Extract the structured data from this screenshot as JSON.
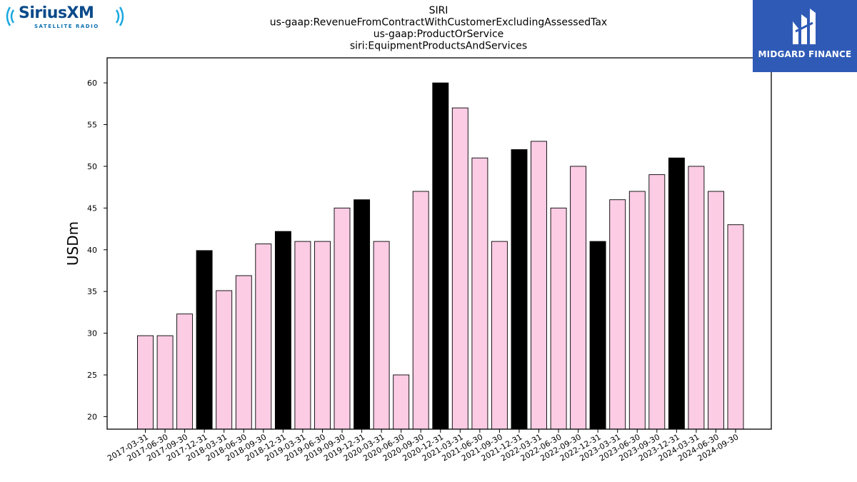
{
  "logos": {
    "left_brand": "SiriusXM",
    "left_sub": "SATELLITE RADIO",
    "right_brand": "MIDGARD FINANCE"
  },
  "chart_data": {
    "type": "bar",
    "title_lines": [
      "SIRI",
      "us-gaap:RevenueFromContractWithCustomerExcludingAssessedTax",
      "us-gaap:ProductOrService",
      "siri:EquipmentProductsAndServices"
    ],
    "xlabel": "",
    "ylabel": "USDm",
    "ylim": [
      18.5,
      63
    ],
    "yticks": [
      20,
      25,
      30,
      35,
      40,
      45,
      50,
      55,
      60
    ],
    "grid": false,
    "colors": {
      "quarter": "#fccbe4",
      "year_end": "#000000",
      "edge": "#000000"
    },
    "categories": [
      "2017-03-31",
      "2017-06-30",
      "2017-09-30",
      "2017-12-31",
      "2018-03-31",
      "2018-06-30",
      "2018-09-30",
      "2018-12-31",
      "2019-03-31",
      "2019-06-30",
      "2019-09-30",
      "2019-12-31",
      "2020-03-31",
      "2020-06-30",
      "2020-09-30",
      "2020-12-31",
      "2021-03-31",
      "2021-06-30",
      "2021-09-30",
      "2021-12-31",
      "2022-03-31",
      "2022-06-30",
      "2022-09-30",
      "2022-12-31",
      "2023-03-31",
      "2023-06-30",
      "2023-09-30",
      "2023-12-31",
      "2024-03-31",
      "2024-06-30",
      "2024-09-30"
    ],
    "values": [
      29.7,
      29.7,
      32.3,
      39.9,
      35.1,
      36.9,
      40.7,
      42.2,
      41,
      41,
      45,
      46,
      41,
      25,
      47,
      60,
      57,
      51,
      41,
      52,
      53,
      45,
      50,
      41,
      46,
      47,
      49,
      51,
      50,
      47,
      43
    ],
    "year_end_flags": [
      false,
      false,
      false,
      true,
      false,
      false,
      false,
      true,
      false,
      false,
      false,
      true,
      false,
      false,
      false,
      true,
      false,
      false,
      false,
      true,
      false,
      false,
      false,
      true,
      false,
      false,
      false,
      true,
      false,
      false,
      false
    ]
  }
}
